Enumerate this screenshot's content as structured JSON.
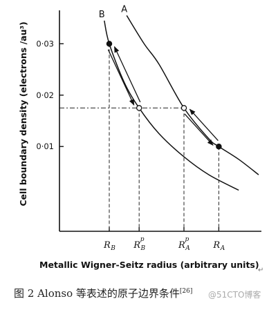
{
  "figure": {
    "ylabel": "Cell boundary density (electrons /au³)",
    "xlabel": "Metallic Wigner-Seitz radius (arbitrary units)",
    "return_mark": "↵"
  },
  "chart_data": {
    "type": "line",
    "xlabel": "Metallic Wigner-Seitz radius (arbitrary units)",
    "ylabel": "Cell boundary density (electrons /au³)",
    "y_ticks": [
      "0·01",
      "0·02",
      "0·03"
    ],
    "y_tick_values": [
      0.01,
      0.02,
      0.03
    ],
    "x_ticks": [
      {
        "main": "R",
        "sub": "B",
        "sup": ""
      },
      {
        "main": "R",
        "sub": "B",
        "sup": "p"
      },
      {
        "main": "R",
        "sub": "A",
        "sup": "p"
      },
      {
        "main": "R",
        "sub": "A",
        "sup": ""
      }
    ],
    "x_tick_values": [
      1.0,
      1.6,
      2.5,
      3.2
    ],
    "xlim": [
      0.0,
      4.0
    ],
    "ylim": [
      -0.0065,
      0.0365
    ],
    "series": [
      {
        "name": "B",
        "x": [
          0.9,
          1.0,
          1.3,
          1.6,
          2.0,
          2.5,
          3.0,
          3.6
        ],
        "y": [
          0.0345,
          0.03,
          0.0225,
          0.0175,
          0.0125,
          0.008,
          0.0045,
          0.0015
        ]
      },
      {
        "name": "A",
        "x": [
          1.35,
          1.7,
          2.0,
          2.5,
          3.0,
          3.2,
          3.6,
          4.0
        ],
        "y": [
          0.0355,
          0.03,
          0.026,
          0.0175,
          0.0115,
          0.01,
          0.0075,
          0.0045
        ]
      }
    ],
    "points": [
      {
        "x": 1.0,
        "y": 0.03,
        "filled": true
      },
      {
        "x": 1.6,
        "y": 0.0175,
        "filled": false
      },
      {
        "x": 2.5,
        "y": 0.0175,
        "filled": false
      },
      {
        "x": 3.2,
        "y": 0.01,
        "filled": true
      }
    ],
    "equal_density_line": 0.0175
  },
  "caption": {
    "label": "图 2",
    "text": "Alonso 等表述的原子边界条件",
    "ref": "[26]"
  },
  "watermark": "@51CTO博客"
}
